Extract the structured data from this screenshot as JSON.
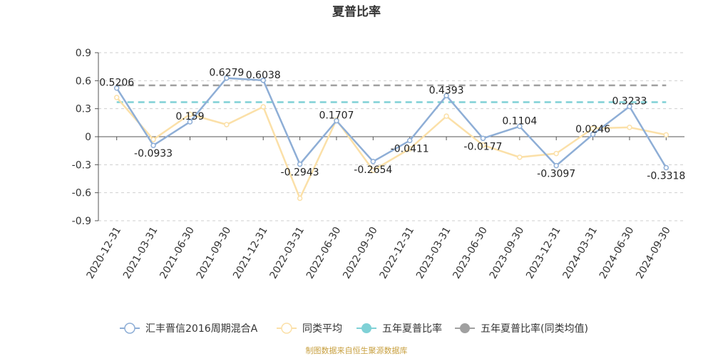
{
  "chart_data": {
    "type": "line",
    "title": "夏普比率",
    "categories": [
      "2020-12-31",
      "2021-03-31",
      "2021-06-30",
      "2021-09-30",
      "2021-12-31",
      "2022-03-31",
      "2022-06-30",
      "2022-09-30",
      "2022-12-31",
      "2023-03-31",
      "2023-06-30",
      "2023-09-30",
      "2023-12-31",
      "2024-03-31",
      "2024-06-30",
      "2024-09-30"
    ],
    "ylim": [
      -0.9,
      0.9
    ],
    "yticks": [
      "0.9",
      "0.6",
      "0.3",
      "0",
      "-0.3",
      "-0.6",
      "-0.9"
    ],
    "grid": true,
    "legend_position": "bottom",
    "series": [
      {
        "name": "汇丰晋信2016周期混合A",
        "color": "#8eaed6",
        "values": [
          0.5206,
          -0.0933,
          0.159,
          0.6279,
          0.6038,
          -0.2943,
          0.1707,
          -0.2654,
          -0.0411,
          0.4393,
          -0.0177,
          0.1104,
          -0.3097,
          0.0246,
          0.3233,
          -0.3318
        ],
        "labels": [
          "0.5206",
          "-0.0933",
          "0.159",
          "0.6279",
          "0.6038",
          "-0.2943",
          "0.1707",
          "-0.2654",
          "-0.0411",
          "0.4393",
          "-0.0177",
          "0.1104",
          "-0.3097",
          "0.0246",
          "0.3233",
          "-0.3318"
        ]
      },
      {
        "name": "同类平均",
        "color": "#fbe0a8",
        "values": [
          0.42,
          -0.03,
          0.24,
          0.13,
          0.32,
          -0.66,
          0.18,
          -0.36,
          -0.13,
          0.22,
          -0.09,
          -0.22,
          -0.18,
          0.09,
          0.1,
          0.02
        ]
      },
      {
        "name": "五年夏普比率",
        "color": "#7fd1d6",
        "constant": 0.37
      },
      {
        "name": "五年夏普比率(同类均值)",
        "color": "#a0a0a0",
        "constant": 0.55
      }
    ],
    "source_note": "制图数据来自恒生聚源数据库"
  }
}
